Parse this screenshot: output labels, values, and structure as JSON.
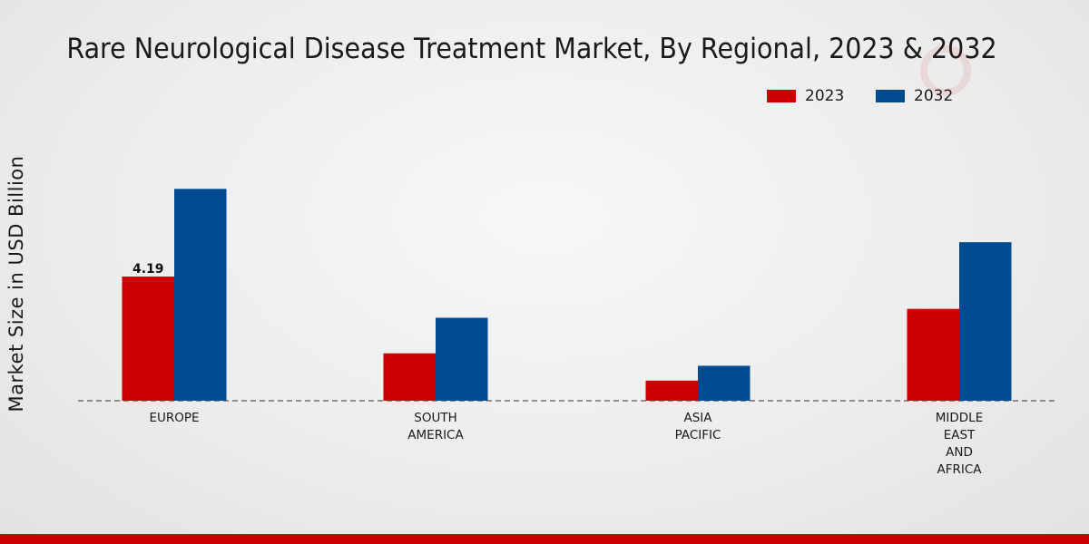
{
  "colors": {
    "series_2023": "#cc0000",
    "series_2032": "#004a8f",
    "bottom_bar": "#cc0000"
  },
  "chart_data": {
    "type": "bar",
    "title": "Rare Neurological Disease Treatment Market, By Regional, 2023 & 2032",
    "xlabel": "",
    "ylabel": "Market Size in USD Billion",
    "categories": [
      [
        "EUROPE"
      ],
      [
        "SOUTH",
        "AMERICA"
      ],
      [
        "ASIA",
        "PACIFIC"
      ],
      [
        "MIDDLE",
        "EAST",
        "AND",
        "AFRICA"
      ]
    ],
    "series": [
      {
        "name": "2023",
        "values": [
          4.19,
          1.6,
          0.68,
          3.1
        ]
      },
      {
        "name": "2032",
        "values": [
          7.15,
          2.8,
          1.18,
          5.35
        ]
      }
    ],
    "data_labels": [
      {
        "series": 0,
        "category": 0,
        "text": "4.19"
      }
    ],
    "ylim": [
      0,
      12.3
    ],
    "legend_position": "top-right",
    "grid": false
  }
}
